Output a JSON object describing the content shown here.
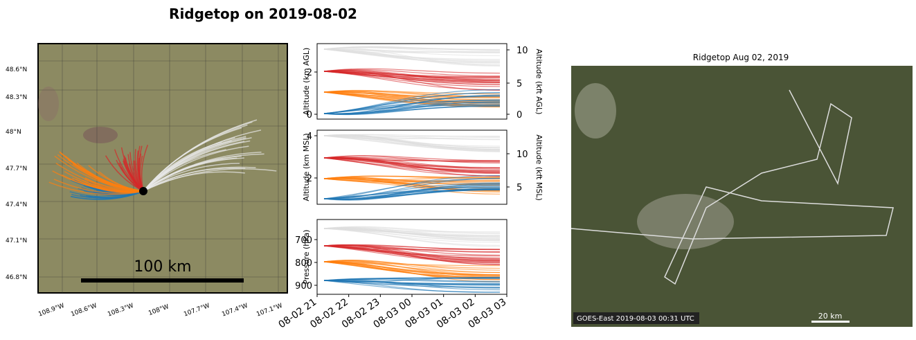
{
  "title": "Ridgetop on 2019-08-02",
  "map": {
    "lat_labels": [
      "48.6°N",
      "48.3°N",
      "48°N",
      "47.7°N",
      "47.4°N",
      "47.1°N",
      "46.8°N"
    ],
    "lon_labels": [
      "108.9°W",
      "108.6°W",
      "108.3°W",
      "108°W",
      "107.7°W",
      "107.4°W",
      "107.1°W"
    ],
    "scale_label": "100 km"
  },
  "panels": [
    {
      "ylabel": "Altitude (km AGL)",
      "yticks": [
        "0",
        "2"
      ],
      "y2label": "Altitude (kft AGL)",
      "y2ticks": [
        "0",
        "5",
        "10"
      ]
    },
    {
      "ylabel": "Altitude (km MSL)",
      "yticks": [
        "2",
        "4"
      ],
      "y2label": "Altitude (kft MSL)",
      "y2ticks": [
        "5",
        "10"
      ]
    },
    {
      "ylabel": "Pressure (hPa)",
      "yticks": [
        "700",
        "800",
        "900"
      ]
    }
  ],
  "time_labels": [
    "08-02 21",
    "08-02 22",
    "08-02 23",
    "08-03 00",
    "08-03 01",
    "08-03 02",
    "08-03 03"
  ],
  "satellite": {
    "title": "Ridgetop Aug 02, 2019",
    "timestamp": "GOES-East 2019-08-03 00:31 UTC",
    "scale_label": "20 km"
  }
}
